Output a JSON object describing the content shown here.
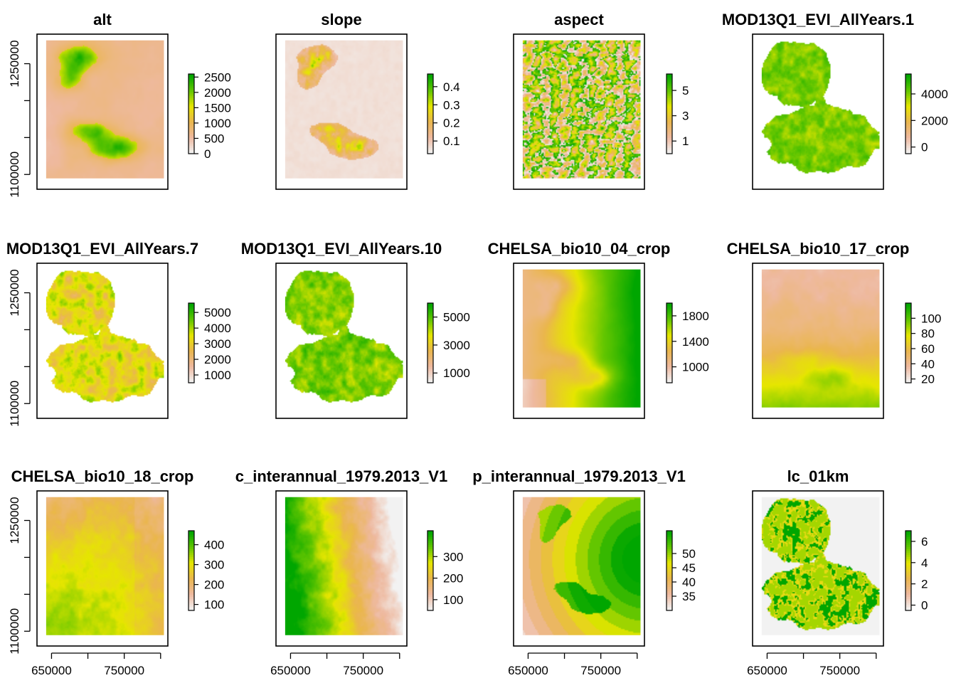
{
  "chart_data": {
    "type": "heatmap",
    "color_ramp": [
      "#F2F2F2",
      "#EEB99F",
      "#EAB64E",
      "#E6E600",
      "#63C600",
      "#00A600"
    ],
    "frame_color": "#000000",
    "background": "#FFFFFF",
    "layout": "3 rows x 4 columns",
    "xlim": [
      630000,
      810000
    ],
    "ylim": [
      1080000,
      1290000
    ],
    "x_axis_ticks": [
      650000,
      750000
    ],
    "x_axis_minor_ticks": [
      650000,
      700000,
      750000,
      800000
    ],
    "y_axis_ticks": [
      1100000,
      1250000
    ],
    "y_axis_minor_ticks": [
      1100000,
      1150000,
      1200000,
      1250000
    ],
    "panels": [
      {
        "title": "alt",
        "legend": {
          "range": [
            0,
            2600
          ],
          "ticks": [
            "0",
            "500",
            "1000",
            "1500",
            "2000",
            "2500"
          ]
        },
        "pattern": "mountains"
      },
      {
        "title": "slope",
        "legend": {
          "range": [
            0.03,
            0.47
          ],
          "ticks": [
            "0.1",
            "0.2",
            "0.3",
            "0.4"
          ]
        },
        "pattern": "slope"
      },
      {
        "title": "aspect",
        "legend": {
          "range": [
            0,
            6.3
          ],
          "ticks": [
            "1",
            "3",
            "5"
          ]
        },
        "pattern": "aspect"
      },
      {
        "title": "MOD13Q1_EVI_AllYears.1",
        "legend": {
          "range": [
            -500,
            5500
          ],
          "ticks": [
            "0",
            "2000",
            "4000"
          ]
        },
        "pattern": "evi-dense"
      },
      {
        "title": "MOD13Q1_EVI_AllYears.7",
        "legend": {
          "range": [
            500,
            5600
          ],
          "ticks": [
            "1000",
            "2000",
            "3000",
            "4000",
            "5000"
          ]
        },
        "pattern": "evi-mixed"
      },
      {
        "title": "MOD13Q1_EVI_AllYears.10",
        "legend": {
          "range": [
            300,
            6000
          ],
          "ticks": [
            "1000",
            "3000",
            "5000"
          ]
        },
        "pattern": "evi-green"
      },
      {
        "title": "CHELSA_bio10_04_crop",
        "legend": {
          "range": [
            750,
            2000
          ],
          "ticks": [
            "1000",
            "1400",
            "1800"
          ]
        },
        "pattern": "east-gradient"
      },
      {
        "title": "CHELSA_bio10_17_crop",
        "legend": {
          "range": [
            15,
            120
          ],
          "ticks": [
            "20",
            "40",
            "60",
            "80",
            "100"
          ]
        },
        "pattern": "south-gradient"
      },
      {
        "title": "CHELSA_bio10_18_crop",
        "legend": {
          "range": [
            70,
            470
          ],
          "ticks": [
            "100",
            "200",
            "300",
            "400"
          ]
        },
        "pattern": "southwest-gradient"
      },
      {
        "title": "c_interannual_1979.2013_V1",
        "legend": {
          "range": [
            50,
            420
          ],
          "ticks": [
            "100",
            "200",
            "300"
          ]
        },
        "pattern": "west-green"
      },
      {
        "title": "p_interannual_1979.2013_V1",
        "legend": {
          "range": [
            30,
            58
          ],
          "ticks": [
            "35",
            "40",
            "45",
            "50"
          ]
        },
        "pattern": "bands"
      },
      {
        "title": "lc_01km",
        "legend": {
          "range": [
            -0.5,
            7
          ],
          "ticks": [
            "0",
            "2",
            "4",
            "6"
          ]
        },
        "pattern": "landcover"
      }
    ]
  }
}
